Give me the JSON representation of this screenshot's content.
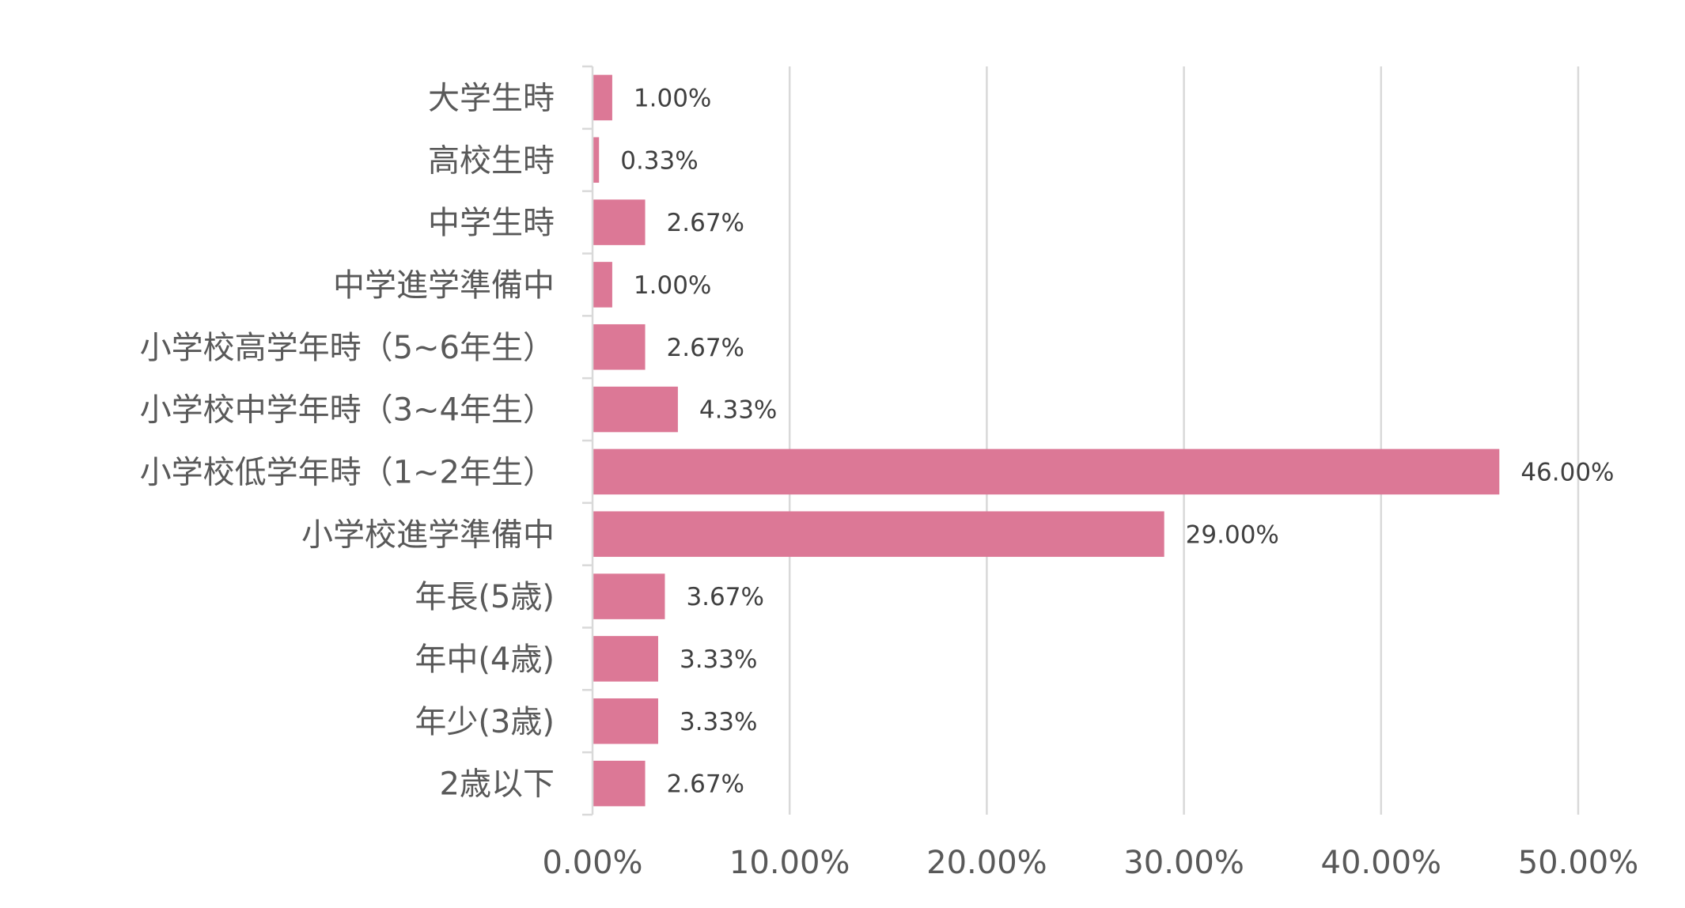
{
  "chart_data": {
    "type": "bar",
    "orientation": "horizontal",
    "categories": [
      "大学生時",
      "高校生時",
      "中学生時",
      "中学進学準備中",
      "小学校高学年時（5~6年生）",
      "小学校中学年時（3~4年生）",
      "小学校低学年時（1~2年生）",
      "小学校進学準備中",
      "年長(5歳)",
      "年中(4歳)",
      "年少(3歳)",
      "2歳以下"
    ],
    "values": [
      1.0,
      0.33,
      2.67,
      1.0,
      2.67,
      4.33,
      46.0,
      29.0,
      3.67,
      3.33,
      3.33,
      2.67
    ],
    "data_labels": [
      "1.00%",
      "0.33%",
      "2.67%",
      "1.00%",
      "2.67%",
      "4.33%",
      "46.00%",
      "29.00%",
      "3.67%",
      "3.33%",
      "3.33%",
      "2.67%"
    ],
    "x_ticks": [
      0,
      10,
      20,
      30,
      40,
      50
    ],
    "x_tick_labels": [
      "0.00%",
      "10.00%",
      "20.00%",
      "30.00%",
      "40.00%",
      "50.00%"
    ],
    "xlim": [
      0,
      50
    ],
    "title": "",
    "xlabel": "",
    "ylabel": "",
    "grid": "vertical",
    "legend": "none",
    "bar_color": "#dc7896",
    "grid_color": "#d9d9d9",
    "label_color": "#595959"
  }
}
